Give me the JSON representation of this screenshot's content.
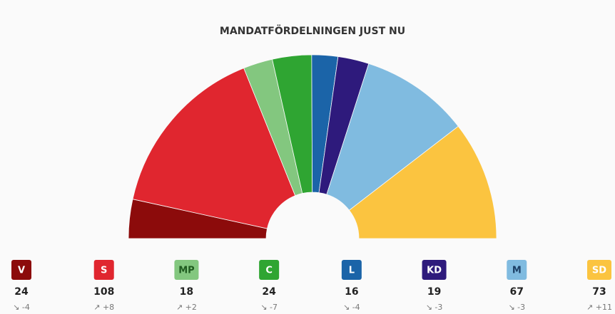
{
  "chart_data": {
    "type": "pie",
    "title": "MANDATFÖRDELNINGEN JUST NU",
    "categories": [
      "V",
      "S",
      "MP",
      "C",
      "L",
      "KD",
      "M",
      "SD"
    ],
    "values": [
      24,
      108,
      18,
      24,
      16,
      19,
      67,
      73
    ],
    "changes": [
      -4,
      8,
      2,
      -7,
      -4,
      -3,
      -3,
      11
    ],
    "change_labels": [
      "↘ -4",
      "↗ +8",
      "↗ +2",
      "↘ -7",
      "↘ -4",
      "↘ -3",
      "↘ -3",
      "↗ +11"
    ],
    "colors": [
      "#8c0b0b",
      "#e0262f",
      "#83c77f",
      "#2fa532",
      "#1b64a8",
      "#2e1a7c",
      "#80bbe0",
      "#fbc440"
    ],
    "label_colors": [
      "#ffffff",
      "#ffffff",
      "#1f5a1f",
      "#ffffff",
      "#ffffff",
      "#ffffff",
      "#1b3f66",
      "#ffffff"
    ]
  }
}
